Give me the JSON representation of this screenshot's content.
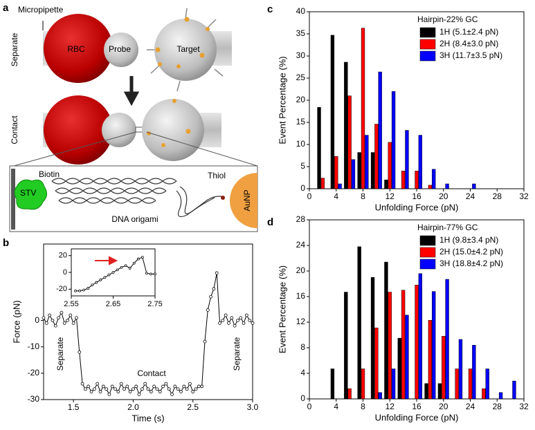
{
  "panel_labels": [
    "a",
    "b",
    "c",
    "d"
  ],
  "diagram": {
    "micropipette": "Micropipette",
    "rbc": "RBC",
    "probe": "Probe",
    "target": "Target",
    "separate": "Separate",
    "contact": "Contact",
    "biotin": "Biotin",
    "stv": "STV",
    "dna_origami": "DNA origami",
    "thiol": "Thiol",
    "aunp": "AuNP"
  },
  "chart_data": [
    {
      "type": "line",
      "xlabel": "Time (s)",
      "ylabel": "Force (pN)",
      "annotations": [
        "Separate",
        "Contact",
        "Separate"
      ],
      "x": [
        1.25,
        1.275,
        1.3,
        1.325,
        1.35,
        1.375,
        1.4,
        1.425,
        1.45,
        1.475,
        1.5,
        1.525,
        1.55,
        1.575,
        1.6,
        1.625,
        1.65,
        1.675,
        1.7,
        1.725,
        1.75,
        1.775,
        1.8,
        1.825,
        1.85,
        1.875,
        1.9,
        1.925,
        1.95,
        1.975,
        2.0,
        2.025,
        2.05,
        2.075,
        2.1,
        2.125,
        2.15,
        2.175,
        2.2,
        2.225,
        2.25,
        2.275,
        2.3,
        2.325,
        2.35,
        2.375,
        2.4,
        2.425,
        2.45,
        2.475,
        2.5,
        2.525,
        2.55,
        2.575,
        2.6,
        2.625,
        2.65,
        2.675,
        2.7,
        2.725,
        2.75,
        2.775,
        2.8,
        2.825,
        2.85,
        2.875,
        2.9,
        2.925,
        2.95,
        2.975,
        3.0
      ],
      "series": [
        {
          "color": "#000000",
          "values": [
            1,
            -1,
            2,
            0,
            -2,
            1,
            3,
            -1,
            0,
            2,
            -1,
            1,
            -12,
            -24,
            -26,
            -25,
            -27,
            -26,
            -24,
            -27,
            -25,
            -26,
            -28,
            -25,
            -26,
            -27,
            -24,
            -26,
            -25,
            -27,
            -26,
            -25,
            -28,
            -26,
            -24,
            -26,
            -27,
            -25,
            -26,
            -27,
            -25,
            -24,
            -26,
            -28,
            -25,
            -26,
            -27,
            -25,
            -26,
            -24,
            -27,
            -26,
            -25,
            -25,
            -8,
            4,
            9,
            12,
            18,
            -1,
            0,
            2,
            -1,
            1,
            -2,
            0,
            1,
            -1,
            2,
            0,
            -1
          ]
        }
      ],
      "xlim": [
        1.25,
        3.0
      ],
      "ylim": [
        -30,
        29
      ],
      "xticks": [
        1.5,
        {
          "value": 2.0,
          "label": "2.0"
        },
        2.5,
        {
          "value": 3.0,
          "label": "3.0"
        }
      ],
      "yticks": [
        -30,
        -20,
        -10,
        0
      ]
    },
    {
      "type": "line",
      "x": [
        2.56,
        2.57,
        2.58,
        2.59,
        2.6,
        2.61,
        2.62,
        2.63,
        2.64,
        2.65,
        2.66,
        2.67,
        2.68,
        2.69,
        2.7,
        2.71,
        2.72,
        2.73,
        2.74,
        2.75
      ],
      "series": [
        {
          "color": "#000000",
          "values": [
            -22,
            -22,
            -21,
            -19,
            -15,
            -12,
            -9,
            -6,
            -3,
            0,
            3,
            6,
            8,
            5,
            11,
            16,
            18,
            -1,
            -2,
            -2
          ]
        }
      ],
      "xlim": [
        2.55,
        2.75
      ],
      "ylim": [
        -28,
        28
      ],
      "xticks": [
        2.55,
        2.65,
        2.75
      ],
      "yticks": [
        -20,
        0,
        20
      ]
    },
    {
      "type": "bar",
      "title": "Hairpin-22% GC",
      "xlabel": "Unfolding Force (pN)",
      "ylabel": "Event Percentage (%)",
      "x": [
        2,
        4,
        6,
        8,
        10,
        12,
        14,
        16,
        18,
        20,
        22,
        24
      ],
      "series": [
        {
          "name": "1H (5.1±2.4 pN)",
          "color": "#000000",
          "values": [
            18.4,
            34.7,
            28.6,
            8.2,
            8.2,
            2.0,
            0,
            0,
            0,
            0,
            0,
            0
          ]
        },
        {
          "name": "2H (8.4±3.0 pN)",
          "color": "#ff0000",
          "values": [
            2.4,
            7.3,
            21.0,
            36.3,
            14.6,
            10.5,
            4.0,
            4.0,
            0.8,
            0,
            0,
            0
          ]
        },
        {
          "name": "3H (11.7±3.5 pN)",
          "color": "#0000ff",
          "values": [
            0,
            1.1,
            6.6,
            12.1,
            26.4,
            22.0,
            13.2,
            12.1,
            4.4,
            1.1,
            0,
            1.1
          ]
        }
      ],
      "xlim": [
        0,
        32
      ],
      "ylim": [
        0,
        40
      ],
      "xticks": [
        0,
        4,
        8,
        12,
        16,
        20,
        24,
        28,
        32
      ],
      "yticks": [
        0,
        5,
        10,
        15,
        20,
        25,
        30,
        35,
        40
      ],
      "legend": "upper right"
    },
    {
      "type": "bar",
      "title": "Hairpin-77% GC",
      "xlabel": "Unfolding Force (pN)",
      "ylabel": "Event Percentage (%)",
      "x": [
        4,
        6,
        8,
        10,
        12,
        14,
        16,
        18,
        20,
        22,
        24,
        26,
        28,
        30
      ],
      "series": [
        {
          "name": "1H (9.8±3.4 pN)",
          "color": "#000000",
          "values": [
            4.7,
            16.7,
            23.8,
            19.0,
            21.4,
            9.5,
            0,
            2.4,
            2.4,
            0,
            0,
            0,
            0,
            0
          ]
        },
        {
          "name": "2H (15.0±4.2 pN)",
          "color": "#ff0000",
          "values": [
            0,
            1.6,
            4.7,
            11.1,
            16.7,
            17.0,
            17.8,
            12.3,
            9.8,
            4.7,
            4.7,
            1.6,
            0,
            0
          ]
        },
        {
          "name": "3H (18.8±4.2 pN)",
          "color": "#0000ff",
          "values": [
            0,
            0,
            0,
            1.0,
            4.7,
            13.1,
            19.6,
            16.8,
            18.7,
            9.3,
            8.4,
            4.7,
            1.0,
            2.8
          ]
        }
      ],
      "xlim": [
        0,
        32
      ],
      "ylim": [
        0,
        28
      ],
      "xticks": [
        0,
        4,
        8,
        12,
        16,
        20,
        24,
        28,
        32
      ],
      "yticks": [
        0,
        4,
        8,
        12,
        16,
        20,
        24,
        28
      ],
      "legend": "upper right"
    }
  ]
}
